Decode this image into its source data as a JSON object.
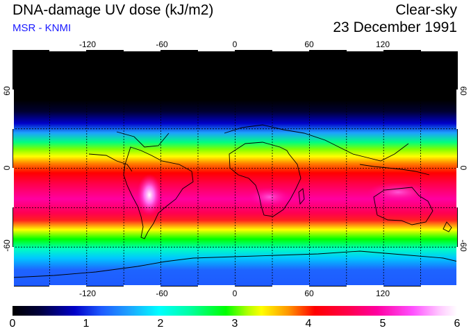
{
  "header": {
    "title": "DNA-damage UV dose (kJ/m2)",
    "subtitle": "MSR - KNMI",
    "sky": "Clear-sky",
    "date": "23 December 1991"
  },
  "map": {
    "longitude_ticks_top": [
      "-120",
      "-60",
      "0",
      "60",
      "120"
    ],
    "longitude_ticks_bottom": [
      "-120",
      "-60",
      "0",
      "60",
      "120"
    ],
    "latitude_ticks_left": [
      "60",
      "0",
      "-60"
    ],
    "latitude_ticks_right": [
      "60",
      "0",
      "-60"
    ],
    "longitude_range": [
      -180,
      180
    ],
    "latitude_range": [
      -90,
      90
    ]
  },
  "colorbar": {
    "ticks": [
      "0",
      "1",
      "2",
      "3",
      "4",
      "5",
      "6"
    ],
    "range": [
      0,
      6
    ]
  },
  "colors": {
    "subtitle": "#1a1aff",
    "polar_night": "#000000",
    "peak": "#ffffff",
    "high": "#ff00a0",
    "mid": "#00ff00",
    "low": "#0000c8"
  }
}
